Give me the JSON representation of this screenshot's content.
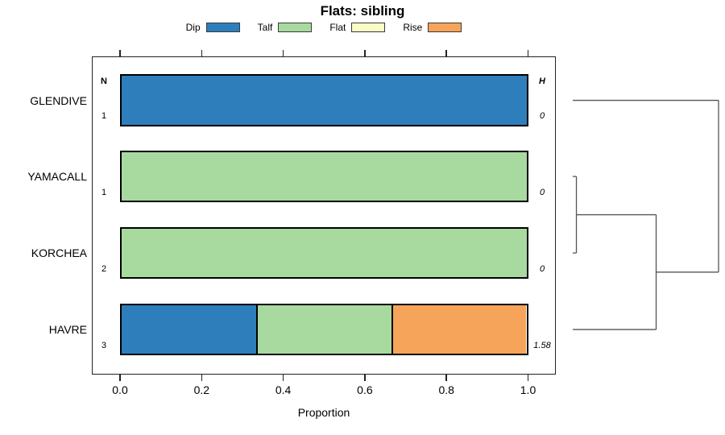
{
  "title": "Flats: sibling",
  "annotations": {
    "n_header": "N",
    "h_header": "H"
  },
  "legend": {
    "items": [
      {
        "label": "Dip",
        "color": "#2E7EBC"
      },
      {
        "label": "Talf",
        "color": "#A8DAA0"
      },
      {
        "label": "Flat",
        "color": "#FBFBC8"
      },
      {
        "label": "Rise",
        "color": "#F7A45B"
      }
    ]
  },
  "chart_data": {
    "type": "bar",
    "subtype": "stacked_horizontal_proportion",
    "title": "Flats: sibling",
    "xlabel": "Proportion",
    "xlim": [
      0,
      1
    ],
    "x_ticks": [
      0,
      0.2,
      0.4,
      0.6,
      0.8,
      1
    ],
    "x_tick_labels": [
      "0.0",
      "0.2",
      "0.4",
      "0.6",
      "0.8",
      "1.0"
    ],
    "grid": false,
    "legend_position": "top",
    "categories": [
      "GLENDIVE",
      "YAMACALL",
      "KORCHEA",
      "HAVRE"
    ],
    "series": [
      {
        "name": "Dip",
        "color": "#2E7EBC",
        "values": [
          1,
          0,
          0,
          0.333
        ]
      },
      {
        "name": "Talf",
        "color": "#A8DAA0",
        "values": [
          0,
          1,
          1,
          0.333
        ]
      },
      {
        "name": "Flat",
        "color": "#FBFBC8",
        "values": [
          0,
          0,
          0,
          0
        ]
      },
      {
        "name": "Rise",
        "color": "#F7A45B",
        "values": [
          0,
          0,
          0,
          0.334
        ]
      }
    ],
    "row_annotations": {
      "N": [
        "1",
        "1",
        "2",
        "3"
      ],
      "H": [
        "0",
        "0",
        "0",
        "1.58"
      ]
    },
    "dendrogram": {
      "orientation": "right",
      "line_color": "#555555",
      "leaves": [
        "GLENDIVE",
        "YAMACALL",
        "KORCHEA",
        "HAVRE"
      ],
      "merges": [
        {
          "children": [
            "YAMACALL",
            "KORCHEA"
          ],
          "height": 0.025
        },
        {
          "children": [
            "merge0",
            "HAVRE"
          ],
          "height": 0.572
        },
        {
          "children": [
            "merge1",
            "GLENDIVE"
          ],
          "height": 1.0
        }
      ]
    }
  }
}
